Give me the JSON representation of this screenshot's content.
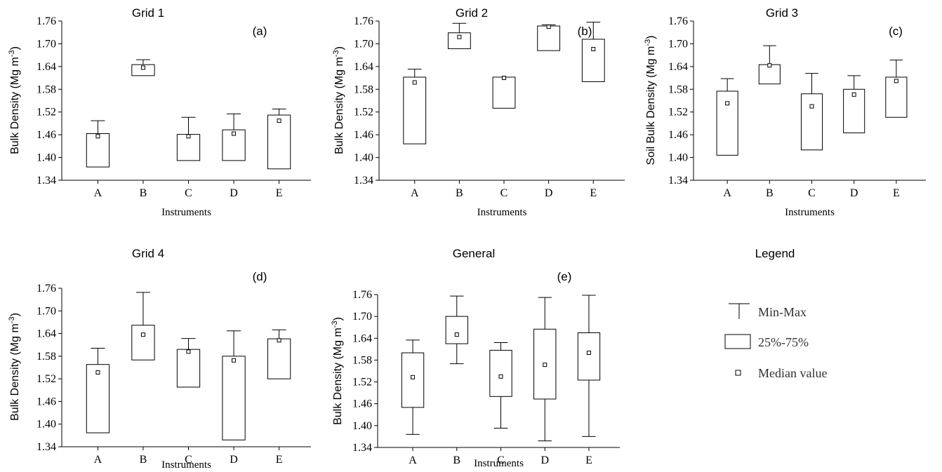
{
  "chart_data": [
    {
      "type": "box",
      "title": "Grid 1",
      "panel_label": "(a)",
      "ylabel": "Bulk Density (Mg m",
      "ylabel_sup": "-3",
      "ylabel_close": ")",
      "xlabel": "Instruments",
      "ylim": [
        1.34,
        1.76
      ],
      "yticks": [
        "1.76",
        "1.70",
        "1.64",
        "1.58",
        "1.52",
        "1.46",
        "1.40",
        "1.34"
      ],
      "categories": [
        "A",
        "B",
        "C",
        "D",
        "E"
      ],
      "boxes": [
        {
          "min": 1.375,
          "q1": 1.375,
          "median": 1.456,
          "q3": 1.463,
          "max": 1.497
        },
        {
          "min": 1.616,
          "q1": 1.616,
          "median": 1.637,
          "q3": 1.645,
          "max": 1.658
        },
        {
          "min": 1.392,
          "q1": 1.392,
          "median": 1.456,
          "q3": 1.461,
          "max": 1.506
        },
        {
          "min": 1.392,
          "q1": 1.392,
          "median": 1.463,
          "q3": 1.473,
          "max": 1.515
        },
        {
          "min": 1.37,
          "q1": 1.37,
          "median": 1.497,
          "q3": 1.512,
          "max": 1.528
        }
      ]
    },
    {
      "type": "box",
      "title": "Grid 2",
      "panel_label": "(b)",
      "ylabel": "Bulk Density (Mg m",
      "ylabel_sup": "-3",
      "ylabel_close": ")",
      "xlabel": "Instruments",
      "ylim": [
        1.34,
        1.76
      ],
      "yticks": [
        "1.76",
        "1.70",
        "1.64",
        "1.58",
        "1.52",
        "1.46",
        "1.40",
        "1.34"
      ],
      "categories": [
        "A",
        "B",
        "C",
        "D",
        "E"
      ],
      "boxes": [
        {
          "min": 1.436,
          "q1": 1.436,
          "median": 1.598,
          "q3": 1.612,
          "max": 1.633
        },
        {
          "min": 1.687,
          "q1": 1.687,
          "median": 1.718,
          "q3": 1.729,
          "max": 1.754
        },
        {
          "min": 1.53,
          "q1": 1.53,
          "median": 1.61,
          "q3": 1.612,
          "max": 1.612
        },
        {
          "min": 1.682,
          "q1": 1.682,
          "median": 1.745,
          "q3": 1.747,
          "max": 1.75
        },
        {
          "min": 1.6,
          "q1": 1.6,
          "median": 1.686,
          "q3": 1.712,
          "max": 1.757
        }
      ]
    },
    {
      "type": "box",
      "title": "Grid 3",
      "panel_label": "(c)",
      "ylabel": "Soil Bulk Density (Mg m",
      "ylabel_sup": "-3",
      "ylabel_close": ")",
      "xlabel": "Instruments",
      "ylim": [
        1.34,
        1.76
      ],
      "yticks": [
        "1.76",
        "1.70",
        "1.64",
        "1.58",
        "1.52",
        "1.46",
        "1.40",
        "1.34"
      ],
      "categories": [
        "A",
        "B",
        "C",
        "D",
        "E"
      ],
      "boxes": [
        {
          "min": 1.406,
          "q1": 1.406,
          "median": 1.543,
          "q3": 1.575,
          "max": 1.608
        },
        {
          "min": 1.594,
          "q1": 1.594,
          "median": 1.643,
          "q3": 1.645,
          "max": 1.695
        },
        {
          "min": 1.42,
          "q1": 1.42,
          "median": 1.535,
          "q3": 1.568,
          "max": 1.622
        },
        {
          "min": 1.465,
          "q1": 1.465,
          "median": 1.566,
          "q3": 1.58,
          "max": 1.616
        },
        {
          "min": 1.506,
          "q1": 1.506,
          "median": 1.602,
          "q3": 1.612,
          "max": 1.657
        }
      ]
    },
    {
      "type": "box",
      "title": "Grid 4",
      "panel_label": "(d)",
      "ylabel": "Bulk Density (Mg m",
      "ylabel_sup": "-3",
      "ylabel_close": ")",
      "xlabel": "Instruments",
      "ylim": [
        1.34,
        1.76
      ],
      "yticks": [
        "1.76",
        "1.70",
        "1.64",
        "1.58",
        "1.52",
        "1.46",
        "1.40",
        "1.34"
      ],
      "categories": [
        "A",
        "B",
        "C",
        "D",
        "E"
      ],
      "boxes": [
        {
          "min": 1.377,
          "q1": 1.377,
          "median": 1.537,
          "q3": 1.558,
          "max": 1.601
        },
        {
          "min": 1.57,
          "q1": 1.57,
          "median": 1.637,
          "q3": 1.662,
          "max": 1.749
        },
        {
          "min": 1.498,
          "q1": 1.498,
          "median": 1.592,
          "q3": 1.598,
          "max": 1.627
        },
        {
          "min": 1.358,
          "q1": 1.358,
          "median": 1.569,
          "q3": 1.58,
          "max": 1.647
        },
        {
          "min": 1.52,
          "q1": 1.52,
          "median": 1.622,
          "q3": 1.626,
          "max": 1.65
        }
      ]
    },
    {
      "type": "box",
      "title": "General",
      "panel_label": "(e)",
      "ylabel": "Bulk Density (Mg m",
      "ylabel_sup": "-3",
      "ylabel_close": ")",
      "xlabel": "Instruments",
      "ylim": [
        1.34,
        1.76
      ],
      "yticks": [
        "1.76",
        "1.70",
        "1.64",
        "1.58",
        "1.52",
        "1.46",
        "1.40",
        "1.34"
      ],
      "categories": [
        "A",
        "B",
        "C",
        "D",
        "E"
      ],
      "boxes": [
        {
          "min": 1.376,
          "q1": 1.45,
          "median": 1.533,
          "q3": 1.6,
          "max": 1.635
        },
        {
          "min": 1.57,
          "q1": 1.625,
          "median": 1.65,
          "q3": 1.7,
          "max": 1.756
        },
        {
          "min": 1.393,
          "q1": 1.48,
          "median": 1.535,
          "q3": 1.607,
          "max": 1.628
        },
        {
          "min": 1.358,
          "q1": 1.473,
          "median": 1.567,
          "q3": 1.665,
          "max": 1.752
        },
        {
          "min": 1.37,
          "q1": 1.525,
          "median": 1.6,
          "q3": 1.655,
          "max": 1.758
        }
      ]
    }
  ],
  "legend": {
    "title": "Legend",
    "items": [
      "Min-Max",
      "25%-75%",
      "Median value"
    ]
  }
}
